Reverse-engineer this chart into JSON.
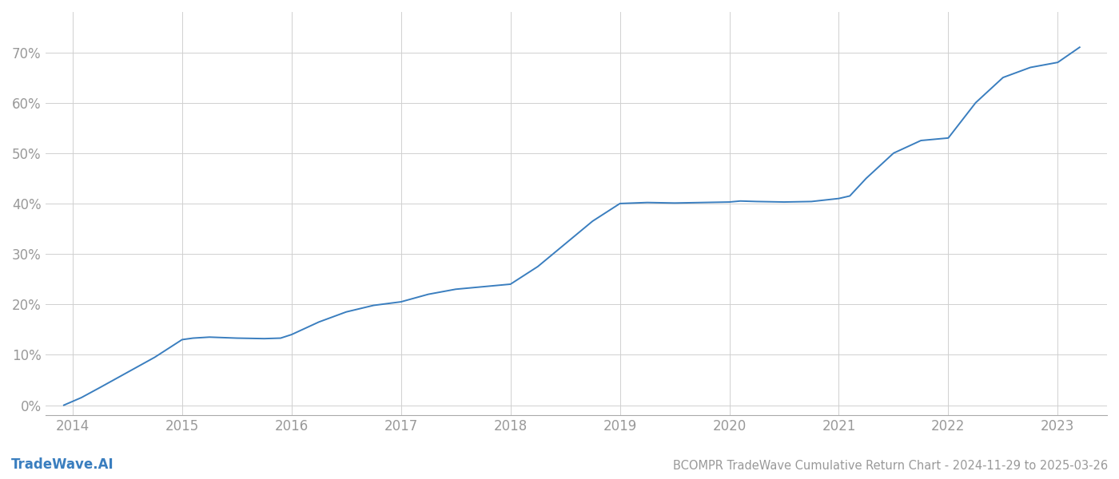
{
  "title": "BCOMPR TradeWave Cumulative Return Chart - 2024-11-29 to 2025-03-26",
  "watermark": "TradeWave.AI",
  "line_color": "#3a7ebf",
  "background_color": "#ffffff",
  "grid_color": "#d0d0d0",
  "axis_color": "#999999",
  "x_years": [
    2014,
    2015,
    2016,
    2017,
    2018,
    2019,
    2020,
    2021,
    2022,
    2023
  ],
  "x_data": [
    2013.92,
    2014.08,
    2014.25,
    2014.5,
    2014.75,
    2015.0,
    2015.1,
    2015.25,
    2015.5,
    2015.75,
    2015.9,
    2016.0,
    2016.25,
    2016.5,
    2016.75,
    2017.0,
    2017.25,
    2017.5,
    2017.75,
    2018.0,
    2018.25,
    2018.5,
    2018.75,
    2019.0,
    2019.25,
    2019.5,
    2019.75,
    2020.0,
    2020.1,
    2020.25,
    2020.5,
    2020.75,
    2021.0,
    2021.1,
    2021.25,
    2021.5,
    2021.75,
    2022.0,
    2022.25,
    2022.5,
    2022.75,
    2023.0,
    2023.2
  ],
  "y_data": [
    0.0,
    1.5,
    3.5,
    6.5,
    9.5,
    13.0,
    13.3,
    13.5,
    13.3,
    13.2,
    13.3,
    14.0,
    16.5,
    18.5,
    19.8,
    20.5,
    22.0,
    23.0,
    23.5,
    24.0,
    27.5,
    32.0,
    36.5,
    40.0,
    40.2,
    40.1,
    40.2,
    40.3,
    40.5,
    40.4,
    40.3,
    40.4,
    41.0,
    41.5,
    45.0,
    50.0,
    52.5,
    53.0,
    60.0,
    65.0,
    67.0,
    68.0,
    71.0
  ],
  "ylim": [
    -2,
    78
  ],
  "yticks": [
    0,
    10,
    20,
    30,
    40,
    50,
    60,
    70
  ],
  "xlim": [
    2013.75,
    2023.45
  ],
  "title_fontsize": 10.5,
  "tick_fontsize": 12,
  "watermark_fontsize": 12
}
